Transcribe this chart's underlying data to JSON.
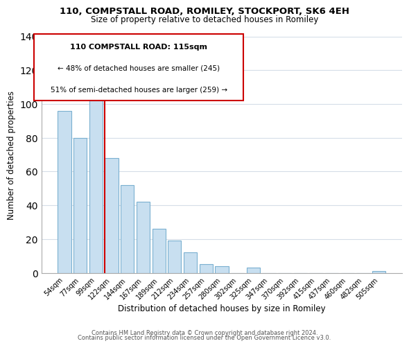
{
  "title": "110, COMPSTALL ROAD, ROMILEY, STOCKPORT, SK6 4EH",
  "subtitle": "Size of property relative to detached houses in Romiley",
  "xlabel": "Distribution of detached houses by size in Romiley",
  "ylabel": "Number of detached properties",
  "bar_labels": [
    "54sqm",
    "77sqm",
    "99sqm",
    "122sqm",
    "144sqm",
    "167sqm",
    "189sqm",
    "212sqm",
    "234sqm",
    "257sqm",
    "280sqm",
    "302sqm",
    "325sqm",
    "347sqm",
    "370sqm",
    "392sqm",
    "415sqm",
    "437sqm",
    "460sqm",
    "482sqm",
    "505sqm"
  ],
  "bar_values": [
    96,
    80,
    102,
    68,
    52,
    42,
    26,
    19,
    12,
    5,
    4,
    0,
    3,
    0,
    0,
    0,
    0,
    0,
    0,
    0,
    1
  ],
  "bar_color": "#c8dff0",
  "bar_edge_color": "#7ab0d0",
  "ylim": [
    0,
    140
  ],
  "yticks": [
    0,
    20,
    40,
    60,
    80,
    100,
    120,
    140
  ],
  "vline_color": "#cc0000",
  "annotation_title": "110 COMPSTALL ROAD: 115sqm",
  "annotation_line1": "← 48% of detached houses are smaller (245)",
  "annotation_line2": "51% of semi-detached houses are larger (259) →",
  "footer1": "Contains HM Land Registry data © Crown copyright and database right 2024.",
  "footer2": "Contains public sector information licensed under the Open Government Licence v3.0.",
  "grid_color": "#d5dde8",
  "title_fontsize": 9.5,
  "subtitle_fontsize": 8.5,
  "ylabel_fontsize": 8.5,
  "xlabel_fontsize": 8.5,
  "tick_fontsize": 7,
  "footer_fontsize": 6
}
